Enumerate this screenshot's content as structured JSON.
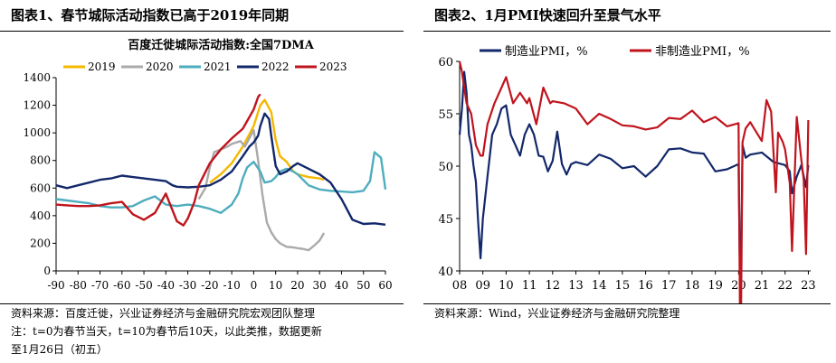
{
  "left": {
    "title": "图表1、春节城际活动指数已高于2019年同期",
    "source": "资料来源：百度迁徙，兴业证券经济与金融研究院宏观团队整理",
    "note1": "注：t=0为春节当天，t=10为春节后10天，以此类推，数据更新",
    "note2": "至1月26日（初五）"
  },
  "right": {
    "title": "图表2、1月PMI快速回升至景气水平",
    "source": "资料来源：Wind，兴业证券经济与金融研究院整理"
  },
  "chart_data": [
    {
      "type": "line",
      "title": "百度迁徙城际活动指数:全国7DMA",
      "xlim": [
        -90,
        60
      ],
      "ylim": [
        0,
        1400
      ],
      "xticks": [
        -90,
        -80,
        -70,
        -60,
        -50,
        -40,
        -30,
        -20,
        -10,
        0,
        10,
        20,
        30,
        40,
        50,
        60
      ],
      "yticks": [
        0,
        200,
        400,
        600,
        800,
        1000,
        1200,
        1400
      ],
      "legend_position": "top",
      "series": [
        {
          "name": "2019",
          "color": "#F5B800",
          "x": [
            -20,
            -15,
            -10,
            -5,
            0,
            3,
            5,
            8,
            10,
            12,
            15,
            18,
            20,
            25,
            30,
            32
          ],
          "y": [
            640,
            700,
            780,
            900,
            1050,
            1200,
            1240,
            1150,
            950,
            830,
            790,
            720,
            700,
            680,
            670,
            660
          ]
        },
        {
          "name": "2020",
          "color": "#AAAAAA",
          "x": [
            -25,
            -22,
            -20,
            -18,
            -15,
            -12,
            -10,
            -8,
            -6,
            -4,
            -2,
            0,
            2,
            4,
            6,
            8,
            10,
            12,
            15,
            18,
            20,
            22,
            25,
            28,
            30,
            32
          ],
          "y": [
            520,
            600,
            750,
            860,
            880,
            900,
            920,
            930,
            940,
            900,
            960,
            1020,
            800,
            550,
            350,
            280,
            230,
            200,
            175,
            170,
            165,
            160,
            150,
            190,
            220,
            275
          ]
        },
        {
          "name": "2021",
          "color": "#4EADBE",
          "x": [
            -90,
            -85,
            -80,
            -75,
            -70,
            -65,
            -60,
            -55,
            -50,
            -45,
            -40,
            -35,
            -30,
            -25,
            -20,
            -15,
            -10,
            -7,
            -5,
            -3,
            0,
            3,
            5,
            8,
            10,
            12,
            15,
            18,
            20,
            25,
            30,
            35,
            40,
            45,
            50,
            53,
            55,
            58,
            60
          ],
          "y": [
            520,
            510,
            500,
            490,
            470,
            460,
            460,
            470,
            510,
            540,
            480,
            470,
            480,
            470,
            450,
            420,
            480,
            560,
            670,
            750,
            790,
            720,
            640,
            650,
            680,
            720,
            740,
            720,
            700,
            620,
            590,
            580,
            575,
            570,
            580,
            650,
            860,
            820,
            590
          ]
        },
        {
          "name": "2022",
          "color": "#13286B",
          "x": [
            -90,
            -85,
            -80,
            -75,
            -70,
            -65,
            -60,
            -55,
            -50,
            -45,
            -40,
            -37,
            -35,
            -30,
            -25,
            -20,
            -15,
            -10,
            -5,
            -2,
            0,
            2,
            3,
            5,
            7,
            8,
            10,
            12,
            15,
            18,
            20,
            25,
            30,
            35,
            40,
            45,
            50,
            55,
            60
          ],
          "y": [
            620,
            600,
            620,
            640,
            660,
            670,
            690,
            680,
            670,
            660,
            650,
            620,
            610,
            605,
            610,
            620,
            660,
            720,
            830,
            900,
            930,
            980,
            1050,
            1140,
            1100,
            980,
            760,
            700,
            720,
            760,
            780,
            740,
            700,
            640,
            520,
            370,
            340,
            345,
            335
          ]
        },
        {
          "name": "2023",
          "color": "#C0141D",
          "x": [
            -90,
            -85,
            -80,
            -75,
            -70,
            -65,
            -60,
            -55,
            -50,
            -45,
            -40,
            -35,
            -32,
            -30,
            -27,
            -25,
            -20,
            -15,
            -10,
            -5,
            0,
            2,
            3
          ],
          "y": [
            480,
            475,
            470,
            470,
            475,
            490,
            500,
            410,
            370,
            420,
            560,
            360,
            330,
            380,
            500,
            620,
            780,
            880,
            960,
            1030,
            1170,
            1260,
            1280
          ]
        }
      ]
    },
    {
      "type": "line",
      "title": "",
      "xlabel_ticks": [
        "08",
        "09",
        "10",
        "11",
        "12",
        "13",
        "14",
        "15",
        "16",
        "17",
        "18",
        "19",
        "20",
        "21",
        "22",
        "23"
      ],
      "xlim": [
        2008,
        2023.1
      ],
      "ylim": [
        40,
        60
      ],
      "yticks": [
        40,
        45,
        50,
        55,
        60
      ],
      "legend_position": "top",
      "series": [
        {
          "name": "制造业PMI，%",
          "color": "#13286B",
          "x": [
            2008.0,
            2008.1,
            2008.2,
            2008.3,
            2008.4,
            2008.5,
            2008.6,
            2008.7,
            2008.8,
            2008.9,
            2009.0,
            2009.2,
            2009.4,
            2009.6,
            2009.8,
            2010.0,
            2010.2,
            2010.4,
            2010.6,
            2010.8,
            2011.0,
            2011.2,
            2011.4,
            2011.6,
            2011.8,
            2012.0,
            2012.2,
            2012.4,
            2012.6,
            2012.8,
            2013.0,
            2013.5,
            2014.0,
            2014.5,
            2015.0,
            2015.5,
            2016.0,
            2016.5,
            2017.0,
            2017.5,
            2018.0,
            2018.5,
            2019.0,
            2019.5,
            2020.0,
            2020.08,
            2020.17,
            2020.3,
            2020.5,
            2021.0,
            2021.5,
            2022.0,
            2022.2,
            2022.3,
            2022.5,
            2022.7,
            2022.9,
            2023.0
          ],
          "y": [
            53,
            55.5,
            59,
            57,
            53,
            52,
            50,
            48.5,
            44.5,
            41.2,
            45,
            49,
            53,
            54,
            55.5,
            55.8,
            53,
            52,
            51,
            53,
            54,
            53,
            51,
            50.9,
            49.5,
            50.5,
            53.3,
            50.2,
            49.2,
            50.2,
            50.4,
            50.1,
            51.1,
            50.7,
            49.8,
            50,
            49,
            50,
            51.6,
            51.7,
            51.3,
            51.2,
            49.5,
            49.7,
            50.2,
            35.7,
            52,
            50.8,
            51.1,
            51.3,
            50.4,
            50.1,
            49.5,
            47.4,
            49,
            50.1,
            48,
            50.1
          ]
        },
        {
          "name": "非制造业PMI，%",
          "color": "#C0141D",
          "x": [
            2008.0,
            2008.1,
            2008.2,
            2008.3,
            2008.5,
            2008.7,
            2008.9,
            2009.0,
            2009.2,
            2009.5,
            2009.8,
            2010.0,
            2010.3,
            2010.6,
            2010.9,
            2011.0,
            2011.3,
            2011.6,
            2011.9,
            2012.0,
            2012.5,
            2013.0,
            2013.5,
            2014.0,
            2014.5,
            2015.0,
            2015.5,
            2016.0,
            2016.5,
            2017.0,
            2017.5,
            2018.0,
            2018.5,
            2019.0,
            2019.5,
            2020.0,
            2020.08,
            2020.17,
            2020.3,
            2020.5,
            2021.0,
            2021.2,
            2021.4,
            2021.6,
            2021.7,
            2021.9,
            2022.0,
            2022.2,
            2022.3,
            2022.5,
            2022.7,
            2022.8,
            2022.9,
            2023.0
          ],
          "y": [
            60,
            59,
            57.5,
            56,
            55,
            52,
            51,
            51,
            54,
            56,
            57.5,
            58.5,
            56,
            57,
            56,
            56.5,
            54,
            57.5,
            56,
            56.2,
            56,
            55.5,
            54,
            55,
            54.5,
            53.9,
            53.8,
            53.5,
            53.7,
            54.6,
            54.5,
            55.3,
            54.2,
            54.7,
            53.8,
            54.1,
            29.6,
            52.3,
            53.6,
            54.2,
            52.4,
            56.3,
            55.2,
            47.5,
            53.2,
            52.3,
            51.6,
            48.4,
            41.9,
            54.7,
            50.6,
            48.7,
            41.6,
            54.4
          ]
        }
      ]
    }
  ]
}
